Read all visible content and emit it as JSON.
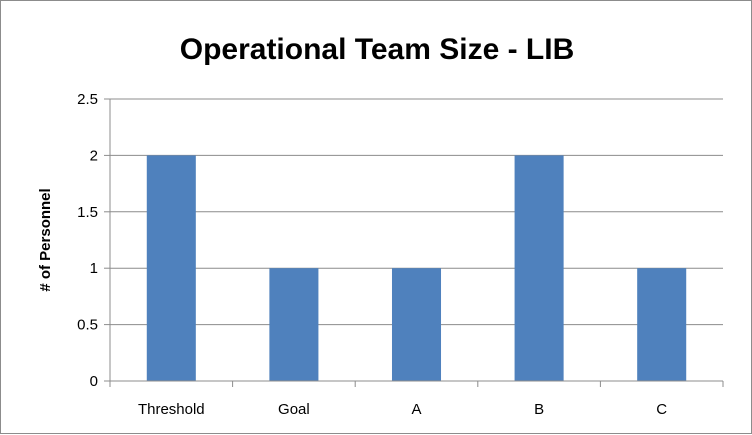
{
  "chart_data": {
    "type": "bar",
    "title": "Operational Team Size - LIB",
    "xlabel": "",
    "ylabel": "# of Personnel",
    "categories": [
      "Threshold",
      "Goal",
      "A",
      "B",
      "C"
    ],
    "values": [
      2,
      1,
      1,
      2,
      1
    ],
    "ylim": [
      0,
      2.5
    ],
    "yticks": [
      "0",
      "0.5",
      "1",
      "1.5",
      "2",
      "2.5"
    ],
    "grid": true,
    "legend": "none",
    "bar_color": "#4f81bd"
  }
}
